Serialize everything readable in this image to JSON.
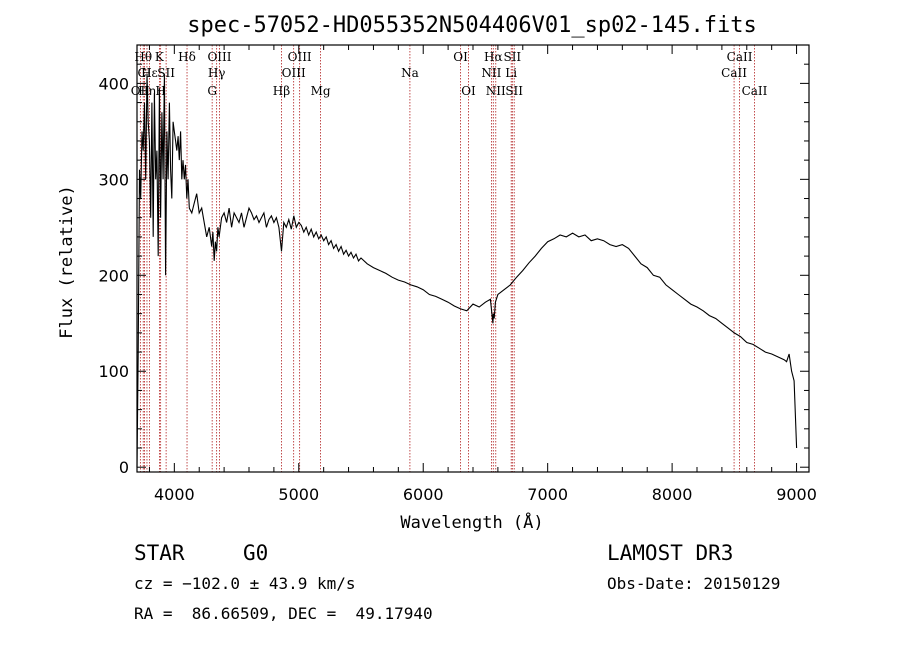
{
  "chart_data": {
    "type": "line",
    "title": "spec-57052-HD055352N504406V01_sp02-145.fits",
    "xlabel": "Wavelength (Å)",
    "ylabel": "Flux (relative)",
    "xlim": [
      3700,
      9100
    ],
    "ylim": [
      -5,
      440
    ],
    "xticks": [
      4000,
      5000,
      6000,
      7000,
      8000,
      9000
    ],
    "yticks": [
      0,
      100,
      200,
      300,
      400
    ],
    "grid": false,
    "series": [
      {
        "name": "flux",
        "x": [
          3700,
          3710,
          3720,
          3730,
          3740,
          3750,
          3760,
          3770,
          3780,
          3790,
          3800,
          3810,
          3820,
          3830,
          3840,
          3850,
          3860,
          3870,
          3880,
          3890,
          3900,
          3910,
          3920,
          3930,
          3940,
          3950,
          3960,
          3970,
          3980,
          3990,
          4000,
          4010,
          4020,
          4030,
          4040,
          4050,
          4060,
          4070,
          4080,
          4090,
          4100,
          4110,
          4120,
          4140,
          4160,
          4180,
          4200,
          4220,
          4240,
          4260,
          4280,
          4300,
          4310,
          4320,
          4330,
          4340,
          4350,
          4360,
          4380,
          4400,
          4420,
          4440,
          4460,
          4480,
          4500,
          4520,
          4540,
          4560,
          4580,
          4600,
          4620,
          4640,
          4660,
          4680,
          4700,
          4720,
          4740,
          4760,
          4780,
          4800,
          4820,
          4840,
          4861,
          4880,
          4900,
          4920,
          4940,
          4960,
          4980,
          5000,
          5020,
          5040,
          5060,
          5080,
          5100,
          5120,
          5140,
          5160,
          5180,
          5200,
          5220,
          5240,
          5260,
          5280,
          5300,
          5320,
          5340,
          5360,
          5380,
          5400,
          5420,
          5440,
          5460,
          5480,
          5500,
          5550,
          5600,
          5650,
          5700,
          5750,
          5800,
          5850,
          5900,
          5950,
          6000,
          6050,
          6100,
          6150,
          6200,
          6250,
          6300,
          6350,
          6400,
          6450,
          6500,
          6540,
          6560,
          6563,
          6570,
          6580,
          6600,
          6650,
          6700,
          6750,
          6800,
          6850,
          6900,
          6950,
          7000,
          7050,
          7100,
          7150,
          7200,
          7250,
          7300,
          7350,
          7400,
          7450,
          7500,
          7550,
          7600,
          7650,
          7700,
          7750,
          7800,
          7850,
          7900,
          7950,
          8000,
          8050,
          8100,
          8150,
          8200,
          8250,
          8300,
          8350,
          8400,
          8450,
          8500,
          8550,
          8600,
          8650,
          8700,
          8750,
          8800,
          8850,
          8900,
          8920,
          8940,
          8960,
          8980,
          9000
        ],
        "values": [
          0,
          120,
          310,
          280,
          350,
          330,
          380,
          300,
          410,
          360,
          340,
          260,
          380,
          240,
          390,
          300,
          330,
          220,
          395,
          260,
          370,
          300,
          410,
          200,
          350,
          300,
          380,
          310,
          280,
          360,
          350,
          340,
          330,
          345,
          320,
          350,
          300,
          320,
          300,
          315,
          280,
          300,
          270,
          265,
          275,
          285,
          265,
          270,
          255,
          240,
          250,
          230,
          245,
          215,
          235,
          225,
          250,
          240,
          260,
          265,
          255,
          270,
          250,
          265,
          260,
          255,
          265,
          250,
          260,
          270,
          265,
          258,
          262,
          255,
          260,
          265,
          250,
          258,
          262,
          255,
          260,
          250,
          225,
          255,
          250,
          258,
          248,
          262,
          250,
          255,
          252,
          245,
          250,
          242,
          248,
          240,
          245,
          238,
          242,
          236,
          240,
          232,
          236,
          228,
          232,
          225,
          230,
          222,
          226,
          220,
          224,
          218,
          222,
          215,
          218,
          212,
          208,
          205,
          202,
          198,
          195,
          193,
          190,
          188,
          185,
          180,
          178,
          175,
          172,
          168,
          165,
          163,
          170,
          167,
          172,
          175,
          150,
          160,
          155,
          172,
          180,
          185,
          190,
          198,
          205,
          213,
          220,
          228,
          235,
          238,
          242,
          240,
          244,
          240,
          242,
          236,
          238,
          236,
          232,
          230,
          232,
          228,
          220,
          212,
          208,
          200,
          198,
          190,
          185,
          180,
          175,
          170,
          167,
          163,
          158,
          155,
          150,
          145,
          140,
          136,
          130,
          128,
          124,
          120,
          118,
          115,
          112,
          110,
          118,
          100,
          90,
          20
        ]
      }
    ],
    "emission_lines": [
      {
        "x": 3727,
        "label": "OII",
        "row": 3
      },
      {
        "x": 3750,
        "label": "Hθ",
        "row": 1
      },
      {
        "x": 3760,
        "label": "CI",
        "row": 2
      },
      {
        "x": 3780,
        "label": "Hη",
        "row": 3
      },
      {
        "x": 3800,
        "label": "Hε",
        "row": 2
      },
      {
        "x": 3880,
        "label": "K",
        "row": 1
      },
      {
        "x": 3890,
        "label": "H",
        "row": 3
      },
      {
        "x": 3934,
        "label": "SII",
        "row": 2
      },
      {
        "x": 4102,
        "label": "Hδ",
        "row": 1
      },
      {
        "x": 4304,
        "label": "G",
        "row": 3
      },
      {
        "x": 4340,
        "label": "Hγ",
        "row": 2
      },
      {
        "x": 4363,
        "label": "OIII",
        "row": 1
      },
      {
        "x": 4861,
        "label": "Hβ",
        "row": 3
      },
      {
        "x": 4959,
        "label": "OIII",
        "row": 2
      },
      {
        "x": 5007,
        "label": "OIII",
        "row": 1
      },
      {
        "x": 5175,
        "label": "Mg",
        "row": 3
      },
      {
        "x": 5893,
        "label": "Na",
        "row": 2
      },
      {
        "x": 6300,
        "label": "OI",
        "row": 1
      },
      {
        "x": 6364,
        "label": "OI",
        "row": 3
      },
      {
        "x": 6548,
        "label": "NII",
        "row": 2
      },
      {
        "x": 6563,
        "label": "Hα",
        "row": 1
      },
      {
        "x": 6583,
        "label": "NII",
        "row": 3
      },
      {
        "x": 6707,
        "label": "Li",
        "row": 2
      },
      {
        "x": 6716,
        "label": "SII",
        "row": 1
      },
      {
        "x": 6731,
        "label": "SII",
        "row": 3
      },
      {
        "x": 8498,
        "label": "CaII",
        "row": 2
      },
      {
        "x": 8542,
        "label": "CaII",
        "row": 1
      },
      {
        "x": 8662,
        "label": "CaII",
        "row": 3
      }
    ]
  },
  "info": {
    "object_class": "STAR",
    "subclass": "G0",
    "survey": "LAMOST DR3",
    "cz": "cz = −102.0 ± 43.9 km/s",
    "obs_date": "Obs-Date: 20150129",
    "coords": "RA =  86.66509, DEC =  49.17940"
  },
  "colors": {
    "line": "#000000",
    "marker": "#b22222"
  }
}
